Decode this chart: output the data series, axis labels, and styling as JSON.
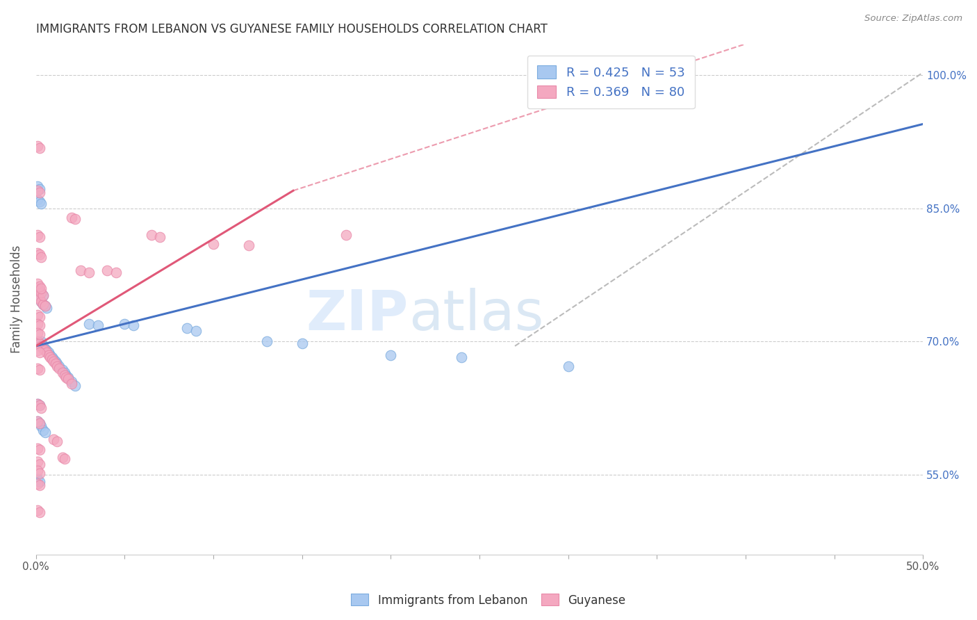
{
  "title": "IMMIGRANTS FROM LEBANON VS GUYANESE FAMILY HOUSEHOLDS CORRELATION CHART",
  "source": "Source: ZipAtlas.com",
  "ylabel": "Family Households",
  "color_lebanon": "#a8c8f0",
  "color_guyanese": "#f4a8c0",
  "color_blue_text": "#4472c4",
  "color_pink_text": "#e05080",
  "xlim": [
    0.0,
    0.5
  ],
  "ylim": [
    0.46,
    1.035
  ],
  "background_color": "#ffffff",
  "watermark_zip": "ZIP",
  "watermark_atlas": "atlas",
  "watermark_color_zip": "#c8ddf0",
  "watermark_color_atlas": "#b8cce4",
  "lebanon_trend": [
    0.0,
    0.5,
    0.695,
    0.945
  ],
  "guyanese_trend_solid": [
    0.0,
    0.145,
    0.695,
    0.87
  ],
  "guyanese_trend_dash": [
    0.0,
    0.5,
    0.695,
    1.1
  ],
  "ref_line": [
    0.27,
    0.5,
    1.003,
    1.003
  ],
  "leb_x": [
    0.001,
    0.003,
    0.004,
    0.005,
    0.006,
    0.007,
    0.008,
    0.009,
    0.01,
    0.011,
    0.012,
    0.013,
    0.015,
    0.016,
    0.017,
    0.018,
    0.02,
    0.022,
    0.001,
    0.002,
    0.003,
    0.004,
    0.005,
    0.006,
    0.001,
    0.002,
    0.003,
    0.004,
    0.001,
    0.002,
    0.003,
    0.001,
    0.002,
    0.001,
    0.002,
    0.03,
    0.035,
    0.05,
    0.055,
    0.085,
    0.09,
    0.13,
    0.15,
    0.2,
    0.24,
    0.3,
    0.001,
    0.002,
    0.003,
    0.004,
    0.005,
    0.001,
    0.002
  ],
  "leb_y": [
    0.7,
    0.7,
    0.695,
    0.692,
    0.69,
    0.688,
    0.685,
    0.682,
    0.68,
    0.678,
    0.675,
    0.672,
    0.668,
    0.665,
    0.662,
    0.66,
    0.655,
    0.65,
    0.75,
    0.748,
    0.745,
    0.742,
    0.74,
    0.738,
    0.76,
    0.758,
    0.755,
    0.752,
    0.86,
    0.858,
    0.855,
    0.875,
    0.872,
    0.63,
    0.628,
    0.72,
    0.718,
    0.72,
    0.718,
    0.715,
    0.712,
    0.7,
    0.698,
    0.685,
    0.682,
    0.672,
    0.61,
    0.608,
    0.605,
    0.6,
    0.598,
    0.545,
    0.542
  ],
  "guy_x": [
    0.001,
    0.002,
    0.003,
    0.004,
    0.005,
    0.006,
    0.007,
    0.008,
    0.009,
    0.01,
    0.011,
    0.012,
    0.013,
    0.015,
    0.016,
    0.017,
    0.018,
    0.02,
    0.001,
    0.002,
    0.003,
    0.004,
    0.005,
    0.001,
    0.002,
    0.003,
    0.004,
    0.001,
    0.002,
    0.003,
    0.001,
    0.002,
    0.001,
    0.002,
    0.003,
    0.025,
    0.03,
    0.04,
    0.045,
    0.065,
    0.07,
    0.1,
    0.12,
    0.175,
    0.001,
    0.002,
    0.003,
    0.001,
    0.002,
    0.001,
    0.002,
    0.001,
    0.002,
    0.001,
    0.002,
    0.001,
    0.002,
    0.01,
    0.012,
    0.015,
    0.016,
    0.02,
    0.022,
    0.001,
    0.002,
    0.001,
    0.002,
    0.001,
    0.002,
    0.001,
    0.002,
    0.001,
    0.002,
    0.001,
    0.002,
    0.001,
    0.002,
    0.001,
    0.002
  ],
  "guy_y": [
    0.7,
    0.698,
    0.695,
    0.692,
    0.69,
    0.688,
    0.685,
    0.682,
    0.68,
    0.678,
    0.675,
    0.672,
    0.67,
    0.665,
    0.662,
    0.66,
    0.658,
    0.653,
    0.75,
    0.748,
    0.745,
    0.742,
    0.74,
    0.76,
    0.758,
    0.755,
    0.752,
    0.8,
    0.798,
    0.795,
    0.82,
    0.818,
    0.765,
    0.762,
    0.76,
    0.78,
    0.778,
    0.78,
    0.778,
    0.82,
    0.818,
    0.81,
    0.808,
    0.82,
    0.63,
    0.628,
    0.625,
    0.61,
    0.608,
    0.58,
    0.578,
    0.565,
    0.562,
    0.555,
    0.552,
    0.54,
    0.538,
    0.59,
    0.588,
    0.57,
    0.568,
    0.84,
    0.838,
    0.92,
    0.918,
    0.87,
    0.868,
    0.73,
    0.728,
    0.72,
    0.718,
    0.71,
    0.708,
    0.69,
    0.688,
    0.67,
    0.668,
    0.51,
    0.508
  ]
}
